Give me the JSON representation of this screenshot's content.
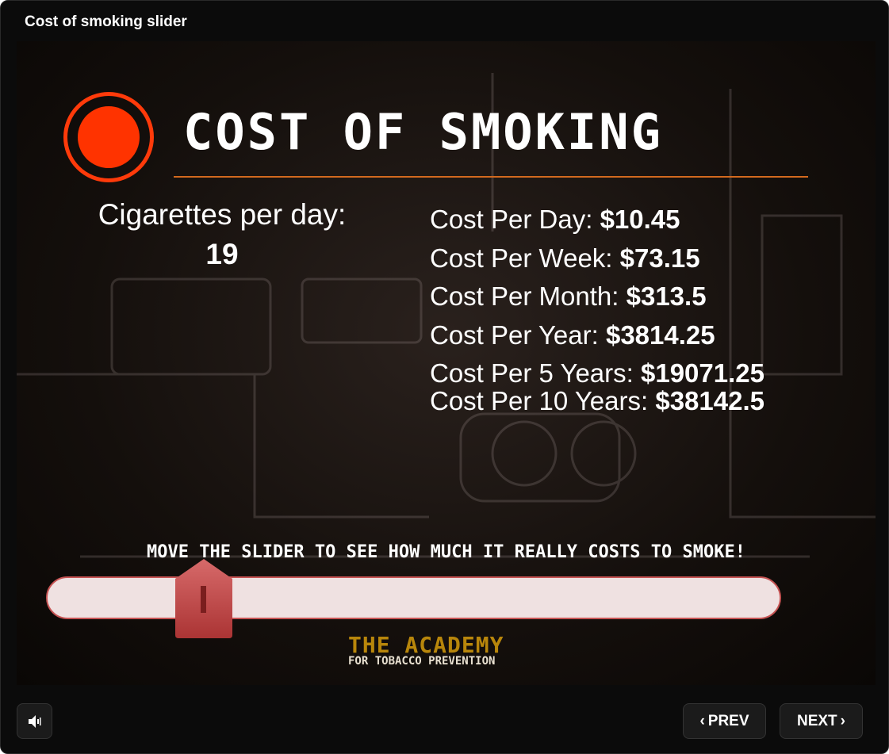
{
  "window": {
    "title": "Cost of smoking slider"
  },
  "slide": {
    "heading": "COST OF SMOKING",
    "cigarettes_label": "Cigarettes per day:",
    "cigarettes_value": "19",
    "costs": [
      {
        "label": "Cost Per Day: ",
        "value": "$10.45"
      },
      {
        "label": "Cost Per Week: ",
        "value": "$73.15"
      },
      {
        "label": "Cost Per Month: ",
        "value": "$313.5"
      },
      {
        "label": "Cost Per Year: ",
        "value": "$3814.25"
      },
      {
        "label": "Cost Per 5 Years: ",
        "value": "$19071.25"
      },
      {
        "label": "Cost Per 10 Years: ",
        "value": "$38142.5"
      }
    ],
    "instruction": "MOVE THE SLIDER TO SEE HOW MUCH IT REALLY COSTS TO SMOKE!",
    "slider": {
      "value": 19,
      "position_fraction": 0.215
    },
    "logo": {
      "line1": "THE ACADEMY",
      "line2": "FOR TOBACCO PREVENTION"
    },
    "colors": {
      "accent": "#ff3300",
      "rule": "#d2691e",
      "thumb": "#c04848",
      "track": "#efe1e1"
    }
  },
  "controls": {
    "volume_icon": "speaker-icon",
    "prev": "PREV",
    "next": "NEXT"
  }
}
